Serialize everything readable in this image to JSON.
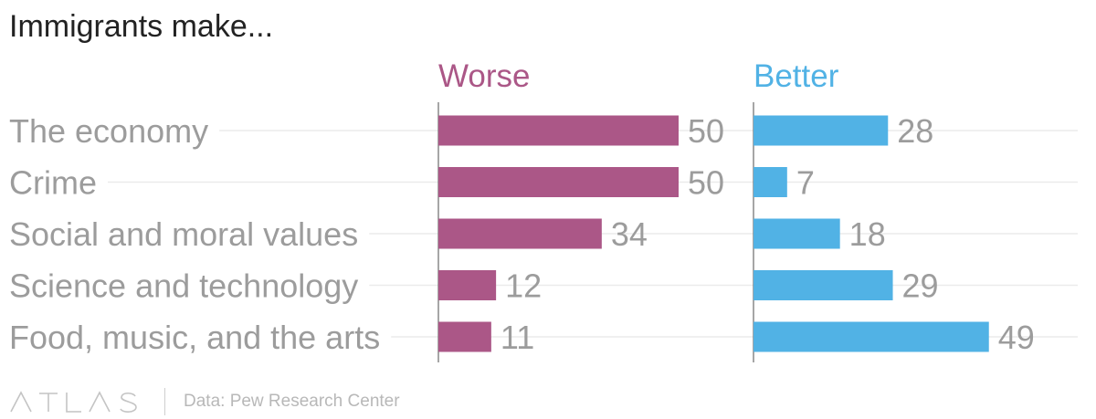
{
  "title": "Immigrants make...",
  "brand": "ATLAS",
  "source": "Data: Pew Research Center",
  "colors": {
    "worse": "#ab5787",
    "better": "#51b2e5",
    "label": "#9c9c9c",
    "title": "#222222"
  },
  "chart_data": {
    "type": "bar",
    "orientation": "horizontal",
    "categories": [
      "The economy",
      "Crime",
      "Social and moral values",
      "Science and technology",
      "Food, music, and the arts"
    ],
    "series": [
      {
        "name": "Worse",
        "values": [
          50,
          50,
          34,
          12,
          11
        ]
      },
      {
        "name": "Better",
        "values": [
          28,
          7,
          18,
          29,
          49
        ]
      }
    ],
    "xlim": [
      0,
      50
    ],
    "grid": true,
    "legend": "top"
  }
}
